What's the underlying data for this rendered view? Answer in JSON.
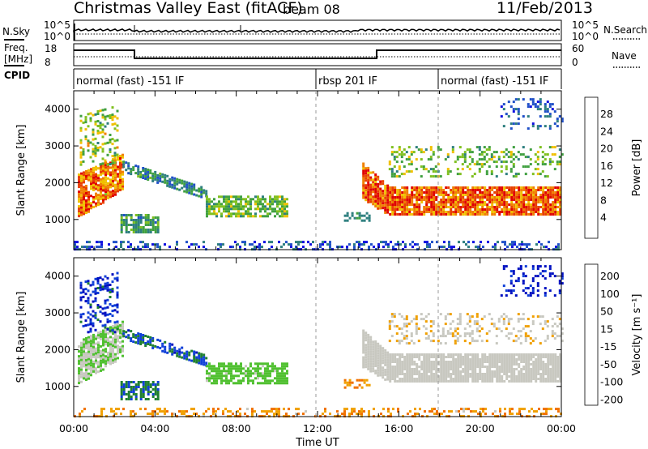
{
  "header": {
    "title": "Christmas Valley East (fitACF)",
    "beam": "beam 08",
    "date": "11/Feb/2013"
  },
  "panels": {
    "nsky": {
      "label": "N.Sky",
      "right_label": "N.Search",
      "ticks_left": [
        "10^5",
        "10^0"
      ],
      "ticks_right": [
        "10^5",
        "10^0"
      ]
    },
    "freq": {
      "label_line1": "Freq.",
      "label_line2": "[MHz]",
      "right_label": "Nave",
      "ticks_left": [
        "18",
        "8"
      ],
      "ticks_right": [
        "60",
        "0"
      ]
    },
    "cpid": {
      "label": "CPID",
      "segments": [
        "normal (fast) -151 IF",
        "rbsp 201 IF",
        "normal (fast) -151 IF"
      ]
    }
  },
  "colors": {
    "power": [
      "#1010e0",
      "#2050c8",
      "#2e7f7f",
      "#40a040",
      "#80c020",
      "#f0c000",
      "#f08000",
      "#e84000",
      "#e00000"
    ],
    "velocity": [
      "#0010c0",
      "#1040d8",
      "#208030",
      "#50c030",
      "#c8c8c0",
      "#f0a000",
      "#f07000",
      "#e83000",
      "#e00000"
    ]
  },
  "chart_data": [
    {
      "type": "heatmap",
      "name": "power",
      "ylabel": "Slant Range [km]",
      "yticks": [
        "4000",
        "3000",
        "2000",
        "1000"
      ],
      "xticks": [
        "00:00",
        "04:00",
        "08:00",
        "12:00",
        "16:00",
        "20:00",
        "00:00"
      ],
      "colorbar_label": "Power [dB]",
      "colorbar_ticks": [
        "28",
        "24",
        "20",
        "16",
        "12",
        "8",
        "4"
      ],
      "ylim": [
        180,
        4500
      ]
    },
    {
      "type": "heatmap",
      "name": "velocity",
      "ylabel": "Slant Range [km]",
      "yticks": [
        "4000",
        "3000",
        "2000",
        "1000"
      ],
      "xticks": [
        "00:00",
        "04:00",
        "08:00",
        "12:00",
        "16:00",
        "20:00",
        "00:00"
      ],
      "xlabel": "Time UT",
      "colorbar_label": "Velocity [m s⁻¹]",
      "colorbar_ticks": [
        "200",
        "100",
        "50",
        "15",
        "-15",
        "-50",
        "-100",
        "-200"
      ],
      "ylim": [
        180,
        4500
      ]
    }
  ]
}
